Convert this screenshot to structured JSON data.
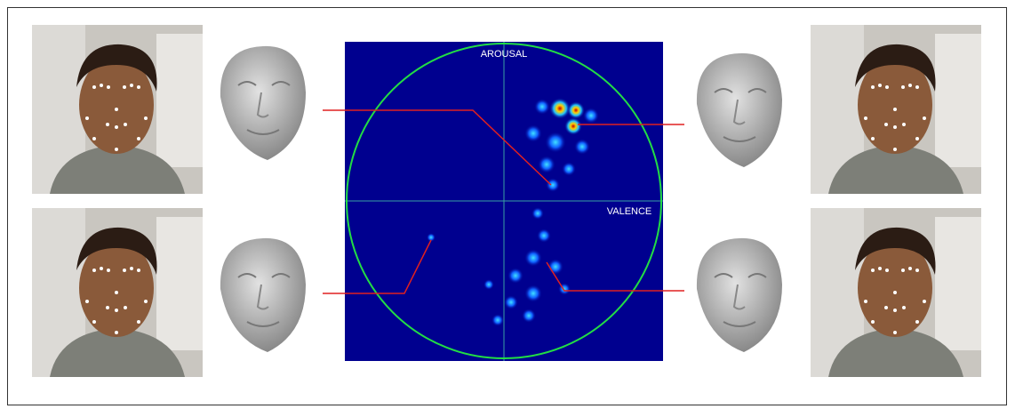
{
  "labels": {
    "arousal": "AROUSAL",
    "valence": "VALENCE"
  }
}
